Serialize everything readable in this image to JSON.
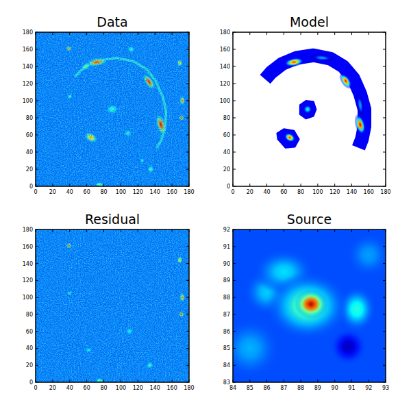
{
  "chart_data": [
    {
      "type": "heatmap",
      "title": "Data",
      "xlim": [
        0,
        180
      ],
      "ylim": [
        0,
        180
      ],
      "xticks": [
        0,
        20,
        40,
        60,
        80,
        100,
        120,
        140,
        160,
        180
      ],
      "yticks": [
        0,
        20,
        40,
        60,
        80,
        100,
        120,
        140,
        160,
        180
      ],
      "zlim": [
        0,
        1
      ],
      "background": 0.25,
      "noise_level": 0.6,
      "arcs": [
        {
          "path": [
            [
              46,
              128
            ],
            [
              58,
              140
            ],
            [
              75,
              147
            ],
            [
              95,
              150
            ],
            [
              115,
              146
            ],
            [
              130,
              137
            ],
            [
              141,
              123
            ],
            [
              149,
              105
            ],
            [
              153,
              88
            ],
            [
              152,
              70
            ],
            [
              148,
              55
            ],
            [
              142,
              45
            ]
          ],
          "width": 3,
          "level": 0.42
        }
      ],
      "regions": [],
      "blobs": [
        {
          "x": 39,
          "y": 161,
          "sx": 1.5,
          "sy": 1.5,
          "angle": 0,
          "peak": 0.85
        },
        {
          "x": 72,
          "y": 145,
          "sx": 6,
          "sy": 2.2,
          "angle": 10,
          "peak": 0.85
        },
        {
          "x": 59,
          "y": 140,
          "sx": 3,
          "sy": 1.8,
          "angle": 30,
          "peak": 0.55
        },
        {
          "x": 133,
          "y": 122,
          "sx": 5,
          "sy": 2.2,
          "angle": -55,
          "peak": 0.9
        },
        {
          "x": 147,
          "y": 72,
          "sx": 6,
          "sy": 2.5,
          "angle": -75,
          "peak": 0.92
        },
        {
          "x": 65,
          "y": 57,
          "sx": 4,
          "sy": 2.5,
          "angle": -30,
          "peak": 0.75
        },
        {
          "x": 90,
          "y": 90,
          "sx": 3.5,
          "sy": 3,
          "angle": 0,
          "peak": 0.45
        },
        {
          "x": 169,
          "y": 144,
          "sx": 1.5,
          "sy": 2,
          "angle": 0,
          "peak": 0.75
        },
        {
          "x": 172,
          "y": 100,
          "sx": 1.5,
          "sy": 2.5,
          "angle": 0,
          "peak": 0.8
        },
        {
          "x": 171,
          "y": 80,
          "sx": 1.5,
          "sy": 1.5,
          "angle": 0,
          "peak": 0.92
        },
        {
          "x": 112,
          "y": 160,
          "sx": 2,
          "sy": 2,
          "angle": 0,
          "peak": 0.45
        },
        {
          "x": 108,
          "y": 62,
          "sx": 2,
          "sy": 2,
          "angle": 0,
          "peak": 0.45
        },
        {
          "x": 135,
          "y": 20,
          "sx": 2,
          "sy": 2,
          "angle": 0,
          "peak": 0.5
        },
        {
          "x": 75,
          "y": 2,
          "sx": 2.5,
          "sy": 1.5,
          "angle": 0,
          "peak": 0.55
        },
        {
          "x": 40,
          "y": 105,
          "sx": 1.5,
          "sy": 1.5,
          "angle": 0,
          "peak": 0.45
        },
        {
          "x": 125,
          "y": 30,
          "sx": 1.5,
          "sy": 1.5,
          "angle": 0,
          "peak": 0.42
        }
      ]
    },
    {
      "type": "heatmap",
      "title": "Model",
      "xlim": [
        0,
        180
      ],
      "ylim": [
        0,
        180
      ],
      "xticks": [
        0,
        20,
        40,
        60,
        80,
        100,
        120,
        140,
        160,
        180
      ],
      "yticks": [
        0,
        20,
        40,
        60,
        80,
        100,
        120,
        140,
        160,
        180
      ],
      "zlim": [
        0,
        1
      ],
      "background": null,
      "noise_level": 0,
      "arcs": [
        {
          "path": [
            [
              38,
              125
            ],
            [
              45,
              133
            ],
            [
              58,
              143
            ],
            [
              75,
              150
            ],
            [
              95,
              153
            ],
            [
              115,
              149
            ],
            [
              130,
              140
            ],
            [
              142,
              126
            ],
            [
              150,
              108
            ],
            [
              155,
              90
            ],
            [
              155,
              70
            ],
            [
              152,
              55
            ],
            [
              148,
              45
            ]
          ],
          "width": 16,
          "level": 0.12
        }
      ],
      "regions": [
        {
          "points": [
            [
              79,
              95
            ],
            [
              86,
              100
            ],
            [
              95,
              99
            ],
            [
              98,
              90
            ],
            [
              95,
              82
            ],
            [
              86,
              79
            ],
            [
              79,
              84
            ]
          ],
          "level": 0.12
        },
        {
          "points": [
            [
              52,
              62
            ],
            [
              60,
              67
            ],
            [
              72,
              65
            ],
            [
              78,
              55
            ],
            [
              73,
              46
            ],
            [
              62,
              45
            ],
            [
              53,
              55
            ]
          ],
          "level": 0.12
        }
      ],
      "blobs": [
        {
          "x": 105,
          "y": 150,
          "sx": 7,
          "sy": 2,
          "angle": -5,
          "peak": 0.3
        },
        {
          "x": 150,
          "y": 95,
          "sx": 7,
          "sy": 2,
          "angle": -80,
          "peak": 0.3
        },
        {
          "x": 72,
          "y": 145,
          "sx": 6,
          "sy": 2.5,
          "angle": 10,
          "peak": 0.85
        },
        {
          "x": 133,
          "y": 123,
          "sx": 5,
          "sy": 2.5,
          "angle": -55,
          "peak": 0.88
        },
        {
          "x": 150,
          "y": 72,
          "sx": 6,
          "sy": 2.8,
          "angle": -75,
          "peak": 0.92
        },
        {
          "x": 67,
          "y": 57,
          "sx": 3.5,
          "sy": 2.5,
          "angle": -30,
          "peak": 0.85
        },
        {
          "x": 88,
          "y": 90,
          "sx": 3,
          "sy": 3,
          "angle": 0,
          "peak": 0.4
        }
      ]
    },
    {
      "type": "heatmap",
      "title": "Residual",
      "xlim": [
        0,
        180
      ],
      "ylim": [
        0,
        180
      ],
      "xticks": [
        0,
        20,
        40,
        60,
        80,
        100,
        120,
        140,
        160,
        180
      ],
      "yticks": [
        0,
        20,
        40,
        60,
        80,
        100,
        120,
        140,
        160,
        180
      ],
      "zlim": [
        0,
        1
      ],
      "background": 0.25,
      "noise_level": 0.6,
      "arcs": [],
      "regions": [],
      "blobs": [
        {
          "x": 39,
          "y": 161,
          "sx": 1.5,
          "sy": 1.5,
          "angle": 0,
          "peak": 0.88
        },
        {
          "x": 169,
          "y": 144,
          "sx": 1.5,
          "sy": 2,
          "angle": 0,
          "peak": 0.75
        },
        {
          "x": 172,
          "y": 100,
          "sx": 1.5,
          "sy": 2.5,
          "angle": 0,
          "peak": 0.8
        },
        {
          "x": 171,
          "y": 80,
          "sx": 1.5,
          "sy": 1.5,
          "angle": 0,
          "peak": 0.92
        },
        {
          "x": 134,
          "y": 20,
          "sx": 2,
          "sy": 2,
          "angle": 0,
          "peak": 0.48
        },
        {
          "x": 110,
          "y": 60,
          "sx": 2,
          "sy": 2,
          "angle": 0,
          "peak": 0.42
        },
        {
          "x": 40,
          "y": 105,
          "sx": 1.5,
          "sy": 1.5,
          "angle": 0,
          "peak": 0.45
        },
        {
          "x": 75,
          "y": 2,
          "sx": 2.5,
          "sy": 1.5,
          "angle": 0,
          "peak": 0.5
        },
        {
          "x": 62,
          "y": 38,
          "sx": 2,
          "sy": 1.5,
          "angle": 0,
          "peak": 0.42
        }
      ]
    },
    {
      "type": "heatmap",
      "title": "Source",
      "xlim": [
        84,
        93
      ],
      "ylim": [
        83,
        92
      ],
      "xticks": [
        84,
        85,
        86,
        87,
        88,
        89,
        90,
        91,
        92,
        93
      ],
      "yticks": [
        83,
        84,
        85,
        86,
        87,
        88,
        89,
        90,
        91,
        92
      ],
      "zlim": [
        0,
        1
      ],
      "background": 0.2,
      "noise_level": 0,
      "arcs": [],
      "regions": [],
      "blobs": [
        {
          "x": 85,
          "y": 85,
          "sx": 0.8,
          "sy": 0.8,
          "angle": 0,
          "peak": 0.3
        },
        {
          "x": 92,
          "y": 90.5,
          "sx": 0.6,
          "sy": 0.6,
          "angle": 0,
          "peak": 0.28
        },
        {
          "x": 86,
          "y": 88.3,
          "sx": 0.6,
          "sy": 0.6,
          "angle": 0,
          "peak": 0.33
        },
        {
          "x": 87,
          "y": 89.5,
          "sx": 0.8,
          "sy": 0.6,
          "angle": 0,
          "peak": 0.35
        },
        {
          "x": 90.8,
          "y": 85.1,
          "sx": 0.5,
          "sy": 0.5,
          "angle": 0,
          "peak": 0.06
        },
        {
          "x": 91.3,
          "y": 87.3,
          "sx": 0.5,
          "sy": 0.6,
          "angle": 0,
          "peak": 0.42
        },
        {
          "x": 88.4,
          "y": 87.5,
          "sx": 1.1,
          "sy": 0.9,
          "angle": 0,
          "peak": 0.5
        },
        {
          "x": 88.6,
          "y": 87.6,
          "sx": 0.45,
          "sy": 0.4,
          "angle": 0,
          "peak": 0.95
        }
      ]
    }
  ]
}
